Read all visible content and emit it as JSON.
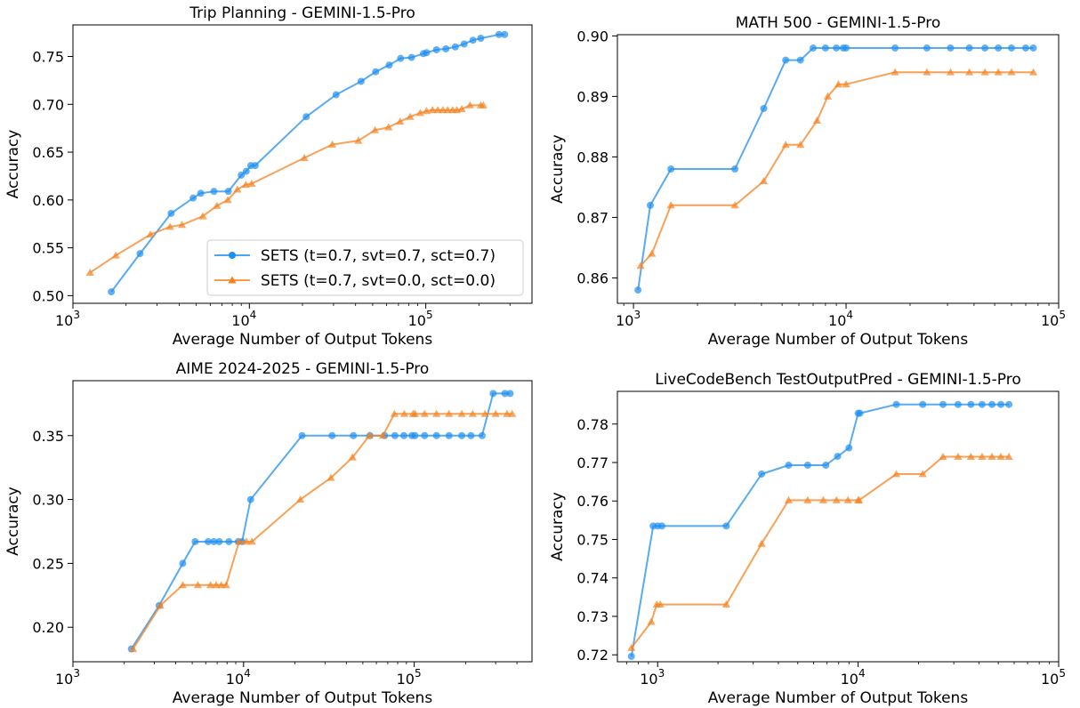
{
  "legend": {
    "entries": [
      {
        "label": "SETS (t=0.7, svt=0.7, sct=0.7)",
        "color": "#1f8ff0",
        "marker": "circle"
      },
      {
        "label": "SETS (t=0.7, svt=0.0, sct=0.0)",
        "color": "#f5821f",
        "marker": "triangle"
      }
    ]
  },
  "chart_data": [
    {
      "type": "line",
      "title": "Trip Planning - GEMINI-1.5-Pro",
      "xlabel": "Average Number of Output Tokens",
      "ylabel": "Accuracy",
      "xscale": "log",
      "xlim": [
        1000,
        400000
      ],
      "ylim": [
        0.492,
        0.783
      ],
      "xticks": [
        {
          "value": 1000,
          "exp": "3"
        },
        {
          "value": 10000,
          "exp": "4"
        },
        {
          "value": 100000,
          "exp": "5"
        }
      ],
      "yticks": [
        {
          "value": 0.5,
          "label": "0.50"
        },
        {
          "value": 0.55,
          "label": "0.55"
        },
        {
          "value": 0.6,
          "label": "0.60"
        },
        {
          "value": 0.65,
          "label": "0.65"
        },
        {
          "value": 0.7,
          "label": "0.70"
        },
        {
          "value": 0.75,
          "label": "0.75"
        }
      ],
      "legend": "lower-right",
      "series": [
        {
          "name": "SETS (t=0.7, svt=0.7, sct=0.7)",
          "color": "#1f8ff0",
          "marker": "circle",
          "x": [
            1650,
            2400,
            3600,
            4800,
            5300,
            6300,
            7600,
            9000,
            9600,
            10200,
            10800,
            21000,
            31000,
            43000,
            52000,
            62000,
            72000,
            83000,
            97000,
            101000,
            115000,
            130000,
            147000,
            165000,
            185000,
            205000,
            260000,
            280000
          ],
          "y": [
            0.504,
            0.544,
            0.586,
            0.602,
            0.607,
            0.609,
            0.609,
            0.626,
            0.63,
            0.636,
            0.636,
            0.687,
            0.71,
            0.724,
            0.734,
            0.741,
            0.748,
            0.749,
            0.753,
            0.754,
            0.757,
            0.758,
            0.76,
            0.763,
            0.767,
            0.769,
            0.773,
            0.773
          ]
        },
        {
          "name": "SETS (t=0.7, svt=0.0, sct=0.0)",
          "color": "#f5821f",
          "marker": "triangle",
          "x": [
            1250,
            1750,
            2750,
            3550,
            4150,
            5450,
            6550,
            7550,
            8550,
            9550,
            10300,
            20500,
            29500,
            41500,
            51500,
            61500,
            71500,
            81500,
            93000,
            101000,
            109000,
            117000,
            125000,
            133000,
            142000,
            150000,
            160000,
            178000,
            205000,
            212000
          ],
          "y": [
            0.524,
            0.542,
            0.564,
            0.572,
            0.574,
            0.583,
            0.594,
            0.6,
            0.611,
            0.616,
            0.617,
            0.644,
            0.658,
            0.662,
            0.673,
            0.676,
            0.682,
            0.687,
            0.691,
            0.693,
            0.694,
            0.694,
            0.694,
            0.694,
            0.694,
            0.694,
            0.695,
            0.699,
            0.699,
            0.699
          ]
        }
      ]
    },
    {
      "type": "line",
      "title": "MATH 500 - GEMINI-1.5-Pro",
      "xlabel": "Average Number of Output Tokens",
      "ylabel": "Accuracy",
      "xscale": "log",
      "xlim": [
        840,
        100000
      ],
      "ylim": [
        0.8558,
        0.9002
      ],
      "xticks": [
        {
          "value": 1000,
          "exp": "3"
        },
        {
          "value": 10000,
          "exp": "4"
        },
        {
          "value": 100000,
          "exp": "5"
        }
      ],
      "yticks": [
        {
          "value": 0.86,
          "label": "0.86"
        },
        {
          "value": 0.87,
          "label": "0.87"
        },
        {
          "value": 0.88,
          "label": "0.88"
        },
        {
          "value": 0.89,
          "label": "0.89"
        },
        {
          "value": 0.9,
          "label": "0.90"
        }
      ],
      "series": [
        {
          "name": "SETS (t=0.7, svt=0.7, sct=0.7)",
          "color": "#1f8ff0",
          "marker": "circle",
          "x": [
            1050,
            1200,
            1500,
            3000,
            4100,
            5200,
            6100,
            7000,
            8000,
            9000,
            9700,
            10000,
            17000,
            24000,
            31000,
            38000,
            45000,
            52000,
            60000,
            70000,
            76000
          ],
          "y": [
            0.858,
            0.872,
            0.878,
            0.878,
            0.888,
            0.896,
            0.896,
            0.898,
            0.898,
            0.898,
            0.898,
            0.898,
            0.898,
            0.898,
            0.898,
            0.898,
            0.898,
            0.898,
            0.898,
            0.898,
            0.898
          ]
        },
        {
          "name": "SETS (t=0.7, svt=0.0, sct=0.0)",
          "color": "#f5821f",
          "marker": "triangle",
          "x": [
            1080,
            1220,
            1500,
            3000,
            4100,
            5200,
            6100,
            7300,
            8200,
            9200,
            10000,
            17000,
            24000,
            31000,
            38000,
            45000,
            52000,
            60000,
            76000
          ],
          "y": [
            0.862,
            0.864,
            0.872,
            0.872,
            0.876,
            0.882,
            0.882,
            0.886,
            0.89,
            0.892,
            0.892,
            0.894,
            0.894,
            0.894,
            0.894,
            0.894,
            0.894,
            0.894,
            0.894
          ]
        }
      ]
    },
    {
      "type": "line",
      "title": "AIME 2024-2025 - GEMINI-1.5-Pro",
      "xlabel": "Average Number of Output Tokens",
      "ylabel": "Accuracy",
      "xscale": "log",
      "xlim": [
        1000,
        490000
      ],
      "ylim": [
        0.173,
        0.393
      ],
      "xticks": [
        {
          "value": 1000,
          "exp": "3"
        },
        {
          "value": 10000,
          "exp": "4"
        },
        {
          "value": 100000,
          "exp": "5"
        }
      ],
      "yticks": [
        {
          "value": 0.2,
          "label": "0.20"
        },
        {
          "value": 0.25,
          "label": "0.25"
        },
        {
          "value": 0.3,
          "label": "0.30"
        },
        {
          "value": 0.35,
          "label": "0.35"
        }
      ],
      "series": [
        {
          "name": "SETS (t=0.7, svt=0.7, sct=0.7)",
          "color": "#1f8ff0",
          "marker": "circle",
          "x": [
            2200,
            3200,
            4400,
            5200,
            6200,
            6700,
            7200,
            8200,
            9300,
            9800,
            11000,
            22000,
            33000,
            44000,
            55000,
            67000,
            77000,
            87000,
            97000,
            101000,
            115000,
            135000,
            160000,
            190000,
            215000,
            250000,
            290000,
            340000,
            365000
          ],
          "y": [
            0.183,
            0.217,
            0.25,
            0.267,
            0.267,
            0.267,
            0.267,
            0.267,
            0.267,
            0.267,
            0.3,
            0.35,
            0.35,
            0.35,
            0.35,
            0.35,
            0.35,
            0.35,
            0.35,
            0.35,
            0.35,
            0.35,
            0.35,
            0.35,
            0.35,
            0.35,
            0.383,
            0.383,
            0.383
          ]
        },
        {
          "name": "SETS (t=0.7, svt=0.0, sct=0.0)",
          "color": "#f5821f",
          "marker": "triangle",
          "x": [
            2250,
            3250,
            4400,
            5400,
            6400,
            6900,
            7400,
            7900,
            9400,
            10400,
            11200,
            21500,
            32500,
            43500,
            54500,
            65500,
            76500,
            87500,
            98500,
            101000,
            115000,
            135000,
            160000,
            190000,
            220000,
            260000,
            300000,
            350000,
            375000
          ],
          "y": [
            0.183,
            0.217,
            0.233,
            0.233,
            0.233,
            0.233,
            0.233,
            0.233,
            0.267,
            0.267,
            0.267,
            0.3,
            0.317,
            0.333,
            0.35,
            0.35,
            0.367,
            0.367,
            0.367,
            0.367,
            0.367,
            0.367,
            0.367,
            0.367,
            0.367,
            0.367,
            0.367,
            0.367,
            0.367
          ]
        }
      ]
    },
    {
      "type": "line",
      "title": "LiveCodeBench TestOutputPred - GEMINI-1.5-Pro",
      "xlabel": "Average Number of Output Tokens",
      "ylabel": "Accuracy",
      "xscale": "log",
      "xlim": [
        630,
        100000
      ],
      "ylim": [
        0.7182,
        0.7885
      ],
      "xticks": [
        {
          "value": 1000,
          "exp": "3"
        },
        {
          "value": 10000,
          "exp": "4"
        },
        {
          "value": 100000,
          "exp": "5"
        }
      ],
      "yticks": [
        {
          "value": 0.72,
          "label": "0.72"
        },
        {
          "value": 0.73,
          "label": "0.73"
        },
        {
          "value": 0.74,
          "label": "0.74"
        },
        {
          "value": 0.75,
          "label": "0.75"
        },
        {
          "value": 0.76,
          "label": "0.76"
        },
        {
          "value": 0.77,
          "label": "0.77"
        },
        {
          "value": 0.78,
          "label": "0.78"
        }
      ],
      "series": [
        {
          "name": "SETS (t=0.7, svt=0.7, sct=0.7)",
          "color": "#1f8ff0",
          "marker": "circle",
          "x": [
            740,
            950,
            1000,
            1050,
            2200,
            3300,
            4500,
            5600,
            6900,
            7900,
            9000,
            10000,
            10200,
            15500,
            21000,
            26500,
            31500,
            36500,
            41500,
            46500,
            51500,
            56500
          ],
          "y": [
            0.7196,
            0.7535,
            0.7535,
            0.7535,
            0.7535,
            0.767,
            0.7693,
            0.7693,
            0.7693,
            0.7716,
            0.7738,
            0.7828,
            0.7828,
            0.7851,
            0.7851,
            0.7851,
            0.7851,
            0.7851,
            0.7851,
            0.7851,
            0.7851,
            0.7851
          ]
        },
        {
          "name": "SETS (t=0.7, svt=0.0, sct=0.0)",
          "color": "#f5821f",
          "marker": "triangle",
          "x": [
            740,
            930,
            990,
            1030,
            2200,
            3300,
            4500,
            5600,
            6700,
            7800,
            8900,
            10000,
            10100,
            15500,
            21000,
            26500,
            31500,
            36500,
            41500,
            46500,
            51500,
            56500
          ],
          "y": [
            0.7218,
            0.7286,
            0.7331,
            0.7331,
            0.7331,
            0.7489,
            0.7602,
            0.7602,
            0.7602,
            0.7602,
            0.7602,
            0.7602,
            0.7602,
            0.767,
            0.767,
            0.7715,
            0.7715,
            0.7715,
            0.7715,
            0.7715,
            0.7715,
            0.7715
          ]
        }
      ]
    }
  ]
}
